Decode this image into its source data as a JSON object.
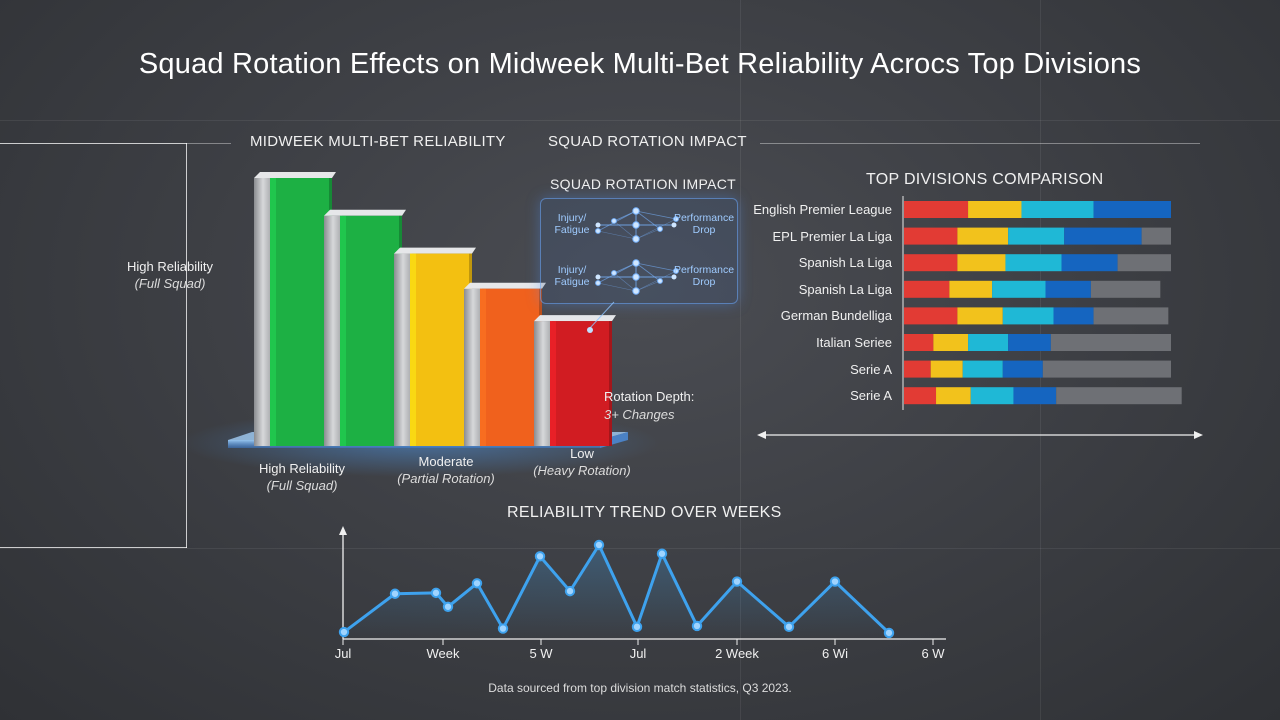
{
  "title": "Squad Rotation Effects on Midweek Multi-Bet Reliability Acrocs Top Divisions",
  "footer": "Data sourced from top division match statistics, Q3 2023.",
  "headings": {
    "reliability": "MIDWEEK MULTI-BET RELIABILITY",
    "rotation_top": "SQUAD ROTATION IMPACT",
    "rotation_panel": "SQUAD ROTATION IMPACT",
    "divisions": "TOP DIVISIONS COMPARISON",
    "trend": "RELIABILITY TREND OVER WEEKS"
  },
  "left_axis_label": {
    "line1": "High Reliability",
    "line2": "(Full Squad)"
  },
  "rotation_note": {
    "line1": "Rotation Depth:",
    "line2": "3+ Changes"
  },
  "colors": {
    "green": "#1db044",
    "yellow": "#f3c011",
    "orange": "#f0611d",
    "red": "#d11c22",
    "seg_red": "#e23b34",
    "seg_yellow": "#f2c21c",
    "seg_cyan": "#1fb8d6",
    "seg_blue": "#1565c0",
    "seg_gray": "#6e7075",
    "line_blue": "#3ea2ee",
    "panel_blue": "#78b4ff"
  },
  "chart_data": [
    {
      "type": "bar",
      "title": "MIDWEEK MULTI-BET RELIABILITY",
      "values": [
        100,
        86,
        72,
        59,
        47
      ],
      "bar_colors": [
        "green",
        "green",
        "yellow",
        "orange",
        "red"
      ],
      "category_labels": [
        {
          "line1": "High Reliability",
          "line2": "(Full Squad)"
        },
        {
          "line1": "Moderate",
          "line2": "(Partial Rotation)"
        },
        {
          "line1": "Low",
          "line2": "(Heavy Rotation)"
        }
      ]
    },
    {
      "type": "diagram",
      "title": "SQUAD ROTATION IMPACT",
      "rows": [
        {
          "left": [
            "Injury/",
            "Fatigue"
          ],
          "right": [
            "Performance",
            "Drop"
          ]
        },
        {
          "left": [
            "Injury/",
            "Fatigue"
          ],
          "right": [
            "Performance",
            "Drop"
          ]
        }
      ]
    },
    {
      "type": "bar",
      "orientation": "horizontal-stacked",
      "title": "TOP DIVISIONS COMPARISON",
      "categories": [
        "English Premier League",
        "EPL Premier La Liga",
        "Spanish La Liga",
        "Spanish La Liga",
        "German Bundelliga",
        "Italian Seriee",
        "Serie A",
        "Serie A"
      ],
      "segment_colors": [
        "seg_red",
        "seg_yellow",
        "seg_cyan",
        "seg_blue",
        "seg_gray"
      ],
      "series": [
        {
          "values": [
            24,
            20,
            20,
            17,
            20,
            11,
            10,
            12
          ]
        },
        {
          "values": [
            20,
            19,
            18,
            16,
            17,
            13,
            12,
            13
          ]
        },
        {
          "values": [
            27,
            21,
            21,
            20,
            19,
            15,
            15,
            16
          ]
        },
        {
          "values": [
            29,
            29,
            21,
            17,
            15,
            16,
            15,
            16
          ]
        },
        {
          "values": [
            0,
            11,
            20,
            26,
            28,
            45,
            48,
            47
          ]
        }
      ]
    },
    {
      "type": "line",
      "title": "RELIABILITY TREND OVER WEEKS",
      "x_tick_labels": [
        "Jul",
        "Week",
        "5 W",
        "Jul",
        "2 Week",
        "6 Wi",
        "6 W"
      ],
      "values": [
        8,
        52,
        53,
        37,
        64,
        12,
        95,
        55,
        108,
        14,
        98,
        15,
        66,
        14,
        66,
        7
      ]
    }
  ]
}
